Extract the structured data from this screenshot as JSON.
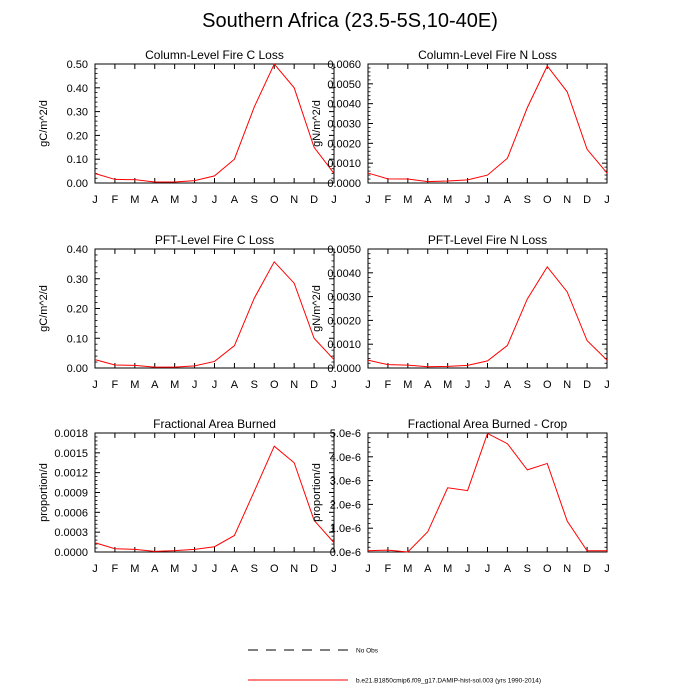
{
  "figure_title": "Southern Africa (23.5-5S,10-40E)",
  "legend": {
    "entries": [
      {
        "label": "No Obs",
        "color": "#000000",
        "dash": true
      },
      {
        "label": "b.e21.B1850cmip6.f09_g17.DAMIP-hist-sol.003 (yrs 1990-2014)",
        "color": "#ff0000",
        "dash": false
      }
    ]
  },
  "chart_data": [
    {
      "type": "line",
      "title": "Column-Level Fire C Loss",
      "ylabel": "gC/m^2/d",
      "xlabel": "",
      "categories": [
        "J",
        "F",
        "M",
        "A",
        "M",
        "J",
        "J",
        "A",
        "S",
        "O",
        "N",
        "D",
        "J"
      ],
      "ylim": [
        0,
        0.5
      ],
      "yticks": [
        "0.00",
        "0.10",
        "0.20",
        "0.30",
        "0.40",
        "0.50"
      ],
      "series": [
        {
          "color": "#ff0000",
          "values": [
            0.04,
            0.015,
            0.014,
            0.004,
            0.004,
            0.01,
            0.03,
            0.1,
            0.32,
            0.5,
            0.4,
            0.15,
            0.04
          ]
        }
      ]
    },
    {
      "type": "line",
      "title": "Column-Level Fire N Loss",
      "ylabel": "gN/m^2/d",
      "xlabel": "",
      "categories": [
        "J",
        "F",
        "M",
        "A",
        "M",
        "J",
        "J",
        "A",
        "S",
        "O",
        "N",
        "D",
        "J"
      ],
      "ylim": [
        0,
        0.006
      ],
      "yticks": [
        "0.0000",
        "0.0010",
        "0.0020",
        "0.0030",
        "0.0040",
        "0.0050",
        "0.0060"
      ],
      "series": [
        {
          "color": "#ff0000",
          "values": [
            0.0005,
            0.00021,
            0.0002,
            7e-05,
            0.0001,
            0.00016,
            0.0004,
            0.00125,
            0.0038,
            0.0059,
            0.0046,
            0.0017,
            0.0005
          ]
        }
      ]
    },
    {
      "type": "line",
      "title": "PFT-Level Fire C Loss",
      "ylabel": "gC/m^2/d",
      "xlabel": "",
      "categories": [
        "J",
        "F",
        "M",
        "A",
        "M",
        "J",
        "J",
        "A",
        "S",
        "O",
        "N",
        "D",
        "J"
      ],
      "ylim": [
        0,
        0.4
      ],
      "yticks": [
        "0.00",
        "0.10",
        "0.20",
        "0.30",
        "0.40"
      ],
      "series": [
        {
          "color": "#ff0000",
          "values": [
            0.028,
            0.01,
            0.009,
            0.003,
            0.003,
            0.007,
            0.022,
            0.075,
            0.235,
            0.357,
            0.285,
            0.1,
            0.028
          ]
        }
      ]
    },
    {
      "type": "line",
      "title": "PFT-Level Fire N Loss",
      "ylabel": "gN/m^2/d",
      "xlabel": "",
      "categories": [
        "J",
        "F",
        "M",
        "A",
        "M",
        "J",
        "J",
        "A",
        "S",
        "O",
        "N",
        "D",
        "J"
      ],
      "ylim": [
        0,
        0.005
      ],
      "yticks": [
        "0.0000",
        "0.0010",
        "0.0020",
        "0.0030",
        "0.0040",
        "0.0050"
      ],
      "series": [
        {
          "color": "#ff0000",
          "values": [
            0.00033,
            0.00014,
            0.00012,
            5e-05,
            7e-05,
            0.00011,
            0.0003,
            0.00095,
            0.0029,
            0.00425,
            0.0032,
            0.00115,
            0.00033
          ]
        }
      ]
    },
    {
      "type": "line",
      "title": "Fractional Area Burned",
      "ylabel": "proportion/d",
      "xlabel": "",
      "categories": [
        "J",
        "F",
        "M",
        "A",
        "M",
        "J",
        "J",
        "A",
        "S",
        "O",
        "N",
        "D",
        "J"
      ],
      "ylim": [
        0,
        0.0018
      ],
      "yticks": [
        "0.0000",
        "0.0003",
        "0.0006",
        "0.0009",
        "0.0012",
        "0.0015",
        "0.0018"
      ],
      "series": [
        {
          "color": "#ff0000",
          "values": [
            0.00014,
            5e-05,
            4e-05,
            1e-05,
            2e-05,
            4e-05,
            8e-05,
            0.00025,
            0.00092,
            0.0016,
            0.00135,
            0.00048,
            0.00014
          ]
        }
      ]
    },
    {
      "type": "line",
      "title": "Fractional Area Burned - Crop",
      "ylabel": "proportion/d",
      "xlabel": "",
      "categories": [
        "J",
        "F",
        "M",
        "A",
        "M",
        "J",
        "J",
        "A",
        "S",
        "O",
        "N",
        "D",
        "J"
      ],
      "ylim": [
        0,
        5e-06
      ],
      "yticks": [
        "0.0e-6",
        "1.0e-6",
        "2.0e-6",
        "3.0e-6",
        "4.0e-6",
        "5.0e-6"
      ],
      "series": [
        {
          "color": "#ff0000",
          "values": [
            5e-08,
            8e-08,
            0.0,
            8.5e-07,
            2.7e-06,
            2.58e-06,
            4.98e-06,
            4.55e-06,
            3.45e-06,
            3.72e-06,
            1.3e-06,
            5e-08,
            5e-08
          ]
        }
      ]
    }
  ]
}
